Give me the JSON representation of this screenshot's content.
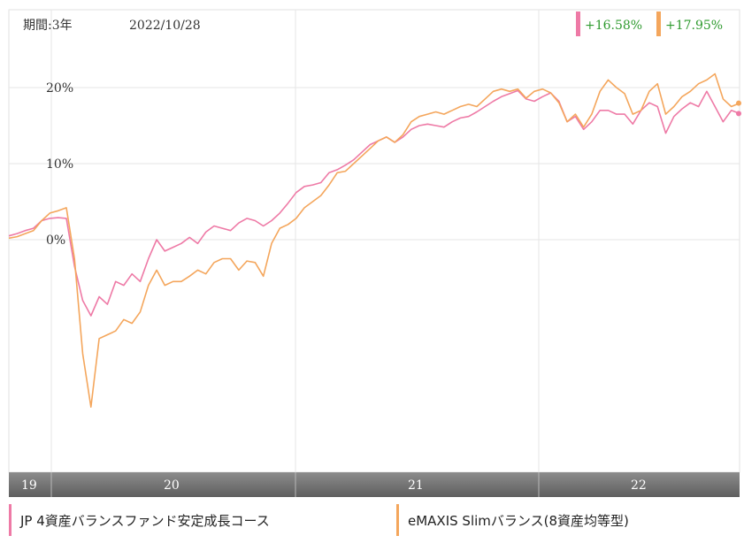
{
  "header": {
    "period_label": "期間:3年",
    "date": "2022/10/28"
  },
  "colors": {
    "series_jp": "#ee7aa6",
    "series_emaxis": "#f4a65c",
    "return_text": "#2e9a2e",
    "axis_band": "#7a7a7a"
  },
  "chart_data": {
    "type": "line",
    "y_unit": "%",
    "ylim": [
      -30,
      30
    ],
    "y_ticks": [
      {
        "value": 0,
        "label": "0%"
      },
      {
        "value": 10,
        "label": "10%"
      },
      {
        "value": 20,
        "label": "20%"
      }
    ],
    "x_ticks": [
      "19",
      "20",
      "21",
      "22"
    ],
    "grid": true,
    "legend_position": "bottom",
    "series": [
      {
        "name": "JP 4資産バランスファンド安定成長コース",
        "final_return": "+16.58%",
        "values": [
          0.5,
          0.8,
          1.2,
          1.5,
          2.5,
          2.8,
          2.9,
          2.8,
          -3.5,
          -8,
          -10,
          -7.5,
          -8.5,
          -5.5,
          -6,
          -4.5,
          -5.5,
          -2.5,
          0,
          -1.5,
          -1,
          -0.5,
          0.3,
          -0.5,
          1,
          1.8,
          1.5,
          1.2,
          2.2,
          2.8,
          2.5,
          1.8,
          2.5,
          3.5,
          4.8,
          6.2,
          7,
          7.2,
          7.5,
          8.8,
          9.2,
          9.8,
          10.5,
          11.5,
          12.5,
          13,
          13.5,
          12.8,
          13.5,
          14.5,
          15,
          15.2,
          15,
          14.8,
          15.5,
          16,
          16.2,
          16.8,
          17.5,
          18.2,
          18.8,
          19.2,
          19.6,
          18.5,
          18.2,
          18.8,
          19.3,
          18.2,
          15.5,
          16.2,
          14.5,
          15.5,
          17,
          17,
          16.5,
          16.5,
          15.2,
          17,
          18,
          17.5,
          14,
          16.2,
          17.2,
          18,
          17.5,
          19.5,
          17.5,
          15.5,
          17,
          16.58
        ]
      },
      {
        "name": "eMAXIS Slimバランス(8資産均等型)",
        "final_return": "+17.95%",
        "values": [
          0.2,
          0.4,
          0.8,
          1.2,
          2.5,
          3.5,
          3.8,
          4.2,
          -2.5,
          -15,
          -22,
          -13,
          -12.5,
          -12,
          -10.5,
          -11,
          -9.5,
          -6,
          -4,
          -6,
          -5.5,
          -5.5,
          -4.8,
          -4,
          -4.5,
          -3,
          -2.5,
          -2.5,
          -4,
          -2.8,
          -3,
          -4.8,
          -0.5,
          1.5,
          2,
          2.8,
          4.2,
          5,
          5.8,
          7.2,
          8.8,
          9,
          10,
          11,
          12,
          13,
          13.5,
          12.8,
          13.8,
          15.5,
          16.2,
          16.5,
          16.8,
          16.5,
          17,
          17.5,
          17.8,
          17.5,
          18.5,
          19.5,
          19.8,
          19.5,
          19.8,
          18.6,
          19.5,
          19.8,
          19.3,
          18,
          15.5,
          16.5,
          14.8,
          16.5,
          19.5,
          21,
          20,
          19.2,
          16.5,
          17,
          19.5,
          20.5,
          16.5,
          17.5,
          18.8,
          19.5,
          20.5,
          21,
          21.8,
          18.5,
          17.5,
          17.95
        ]
      }
    ]
  }
}
